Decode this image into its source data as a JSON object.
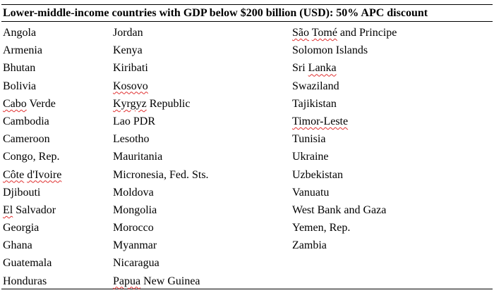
{
  "title": "Lower-middle-income countries with GDP below $200 billion (USD): 50% APC discount",
  "columns": [
    [
      {
        "name": "Angola"
      },
      {
        "name": "Armenia"
      },
      {
        "name": "Bhutan"
      },
      {
        "name": "Bolivia"
      },
      {
        "name": "Cabo Verde",
        "parts": [
          {
            "t": "Cabo",
            "sp": true
          },
          {
            "t": " Verde"
          }
        ]
      },
      {
        "name": "Cambodia"
      },
      {
        "name": "Cameroon"
      },
      {
        "name": "Congo, Rep."
      },
      {
        "name": "Côte d'Ivoire",
        "parts": [
          {
            "t": "Côte",
            "sp": true
          },
          {
            "t": " "
          },
          {
            "t": "d'Ivoire",
            "sp": true
          }
        ]
      },
      {
        "name": "Djibouti"
      },
      {
        "name": "El Salvador",
        "parts": [
          {
            "t": "El",
            "sp": true
          },
          {
            "t": " Salvador"
          }
        ]
      },
      {
        "name": "Georgia"
      },
      {
        "name": "Ghana"
      },
      {
        "name": "Guatemala"
      },
      {
        "name": "Honduras"
      }
    ],
    [
      {
        "name": "Jordan"
      },
      {
        "name": "Kenya"
      },
      {
        "name": "Kiribati"
      },
      {
        "name": "Kosovo",
        "parts": [
          {
            "t": "Kosovo",
            "sp": true
          }
        ]
      },
      {
        "name": "Kyrgyz Republic",
        "parts": [
          {
            "t": "Kyrgyz",
            "sp": true
          },
          {
            "t": " Republic"
          }
        ]
      },
      {
        "name": "Lao PDR"
      },
      {
        "name": "Lesotho"
      },
      {
        "name": "Mauritania"
      },
      {
        "name": "Micronesia, Fed. Sts."
      },
      {
        "name": "Moldova"
      },
      {
        "name": "Mongolia"
      },
      {
        "name": "Morocco"
      },
      {
        "name": "Myanmar"
      },
      {
        "name": "Nicaragua"
      },
      {
        "name": "Papua New Guinea",
        "parts": [
          {
            "t": "Papua",
            "sp": true
          },
          {
            "t": " New Guinea"
          }
        ]
      }
    ],
    [
      {
        "name": "São Tomé and Principe",
        "parts": [
          {
            "t": "São",
            "sp": true
          },
          {
            "t": " "
          },
          {
            "t": "Tomé",
            "sp": true
          },
          {
            "t": " and Principe"
          }
        ]
      },
      {
        "name": "Solomon Islands"
      },
      {
        "name": "Sri Lanka",
        "parts": [
          {
            "t": "Sri"
          },
          {
            "t": " "
          },
          {
            "t": "Lanka",
            "sp": true
          }
        ]
      },
      {
        "name": "Swaziland"
      },
      {
        "name": "Tajikistan"
      },
      {
        "name": "Timor-Leste",
        "parts": [
          {
            "t": "Timor-Leste",
            "sp": true
          }
        ]
      },
      {
        "name": "Tunisia"
      },
      {
        "name": "Ukraine"
      },
      {
        "name": "Uzbekistan"
      },
      {
        "name": "Vanuatu"
      },
      {
        "name": "West Bank and Gaza"
      },
      {
        "name": "Yemen, Rep."
      },
      {
        "name": "Zambia"
      }
    ]
  ]
}
